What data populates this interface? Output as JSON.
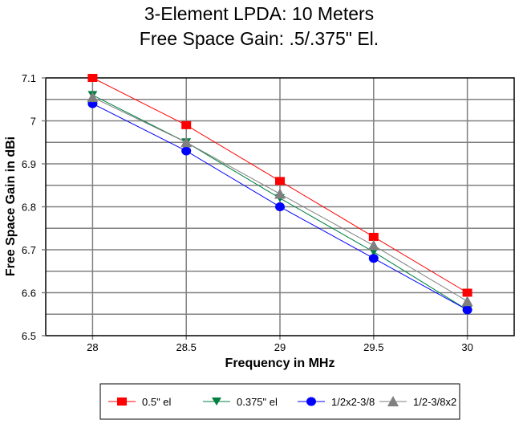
{
  "chart_data": {
    "type": "line",
    "title": "3-Element LPDA: 10 Meters",
    "subtitle": "Free Space Gain:  .5/.375\" El.",
    "xlabel": "Frequency in MHz",
    "ylabel": "Free Space Gain in dBi",
    "x": [
      28,
      28.5,
      29,
      29.5,
      30
    ],
    "x_tick_labels": [
      "28",
      "28.5",
      "29",
      "29.5",
      "30"
    ],
    "y_ticks": [
      6.5,
      6.6,
      6.7,
      6.8,
      6.9,
      7.0,
      7.1
    ],
    "y_tick_labels": [
      "6.5",
      "6.6",
      "6.7",
      "6.8",
      "6.9",
      "7",
      "7.1"
    ],
    "xlim": [
      27.75,
      30.25
    ],
    "ylim": [
      6.5,
      7.1
    ],
    "y_minor_step": 0.05,
    "grid": true,
    "legend_position": "bottom",
    "series": [
      {
        "name": "0.5\" el",
        "color": "#ff0000",
        "marker": "square",
        "values": [
          7.1,
          6.99,
          6.86,
          6.73,
          6.6
        ]
      },
      {
        "name": "0.375\" el",
        "color": "#008040",
        "marker": "triangle-down",
        "values": [
          7.06,
          6.95,
          6.82,
          6.695,
          6.56
        ]
      },
      {
        "name": "1/2x2-3/8",
        "color": "#0000ff",
        "marker": "circle",
        "values": [
          7.04,
          6.93,
          6.8,
          6.68,
          6.56
        ]
      },
      {
        "name": "1/2-3/8x2",
        "color": "#808080",
        "marker": "triangle-up",
        "values": [
          7.055,
          6.95,
          6.83,
          6.71,
          6.58
        ]
      }
    ]
  }
}
